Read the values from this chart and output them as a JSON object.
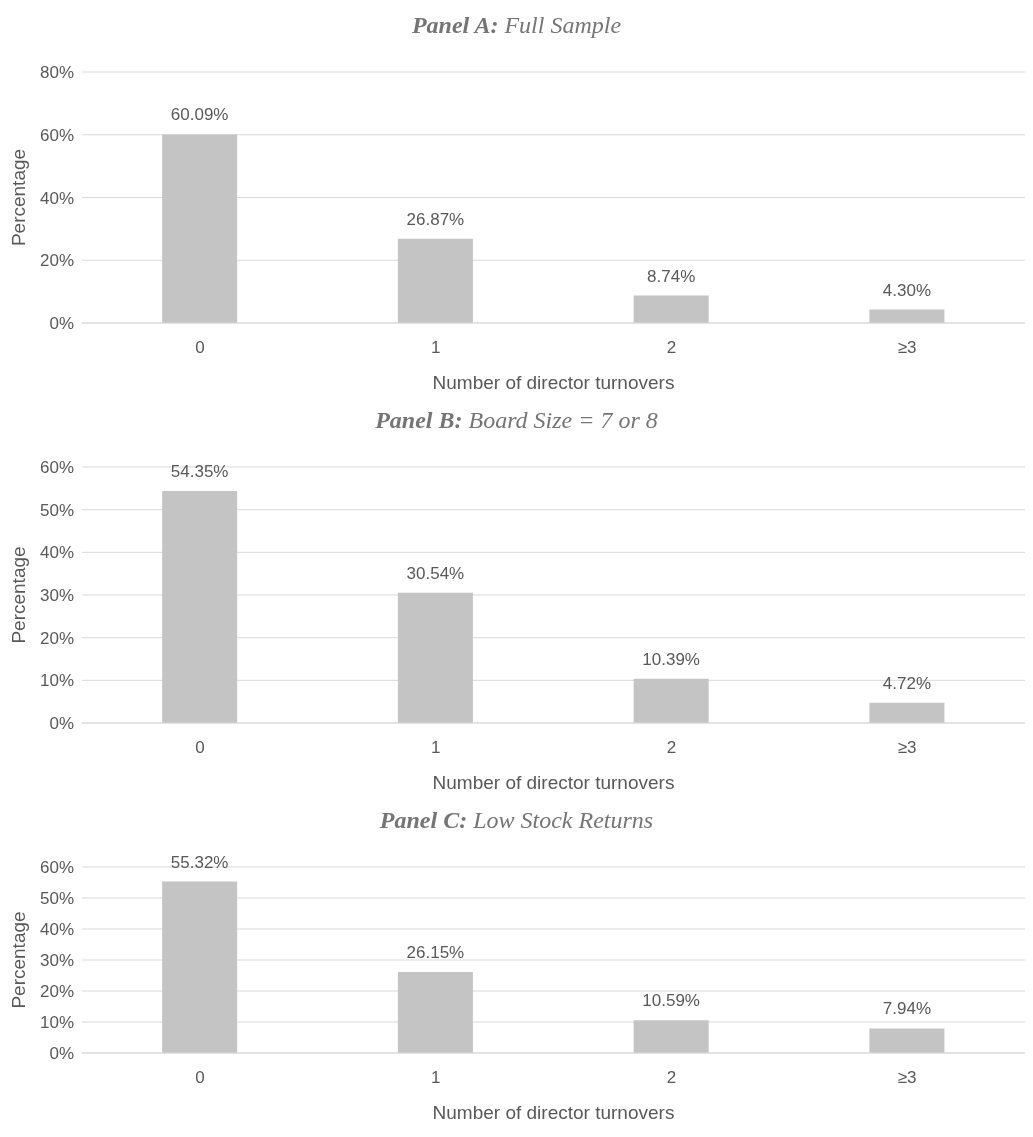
{
  "chart_data": [
    {
      "type": "bar",
      "title": "Panel A: Full Sample",
      "xlabel": "Number of director turnovers",
      "ylabel": "Percentage",
      "categories": [
        "0",
        "1",
        "2",
        "≥3"
      ],
      "values": [
        60.09,
        26.87,
        8.74,
        4.3
      ],
      "value_labels": [
        "60.09%",
        "26.87%",
        "8.74%",
        "4.30%"
      ],
      "color": "#c4c4c4",
      "ylim": [
        0,
        80
      ],
      "yticks": [
        {
          "value": 0,
          "label": "0%"
        },
        {
          "value": 20,
          "label": "20%"
        },
        {
          "value": 40,
          "label": "40%"
        },
        {
          "value": 60,
          "label": "60%"
        },
        {
          "value": 80,
          "label": "80%"
        }
      ],
      "grid": "y",
      "legend": false
    },
    {
      "type": "bar",
      "title": "Panel B: Board Size = 7 or 8",
      "xlabel": "Number of director turnovers",
      "ylabel": "Percentage",
      "categories": [
        "0",
        "1",
        "2",
        "≥3"
      ],
      "values": [
        54.35,
        30.54,
        10.39,
        4.72
      ],
      "value_labels": [
        "54.35%",
        "30.54%",
        "10.39%",
        "4.72%"
      ],
      "color": "#c4c4c4",
      "ylim": [
        0,
        60
      ],
      "yticks": [
        {
          "value": 0,
          "label": "0%"
        },
        {
          "value": 10,
          "label": "10%"
        },
        {
          "value": 20,
          "label": "20%"
        },
        {
          "value": 30,
          "label": "30%"
        },
        {
          "value": 40,
          "label": "40%"
        },
        {
          "value": 50,
          "label": "50%"
        },
        {
          "value": 60,
          "label": "60%"
        }
      ],
      "grid": "y",
      "legend": false
    },
    {
      "type": "bar",
      "title": "Panel C: Low Stock Returns",
      "xlabel": "Number of director turnovers",
      "ylabel": "Percentage",
      "categories": [
        "0",
        "1",
        "2",
        "≥3"
      ],
      "values": [
        55.32,
        26.15,
        10.59,
        7.94
      ],
      "value_labels": [
        "55.32%",
        "26.15%",
        "10.59%",
        "7.94%"
      ],
      "color": "#c4c4c4",
      "ylim": [
        0,
        60
      ],
      "yticks": [
        {
          "value": 0,
          "label": "0%"
        },
        {
          "value": 10,
          "label": "10%"
        },
        {
          "value": 20,
          "label": "20%"
        },
        {
          "value": 30,
          "label": "30%"
        },
        {
          "value": 40,
          "label": "40%"
        },
        {
          "value": 50,
          "label": "50%"
        },
        {
          "value": 60,
          "label": "60%"
        }
      ],
      "grid": "y",
      "legend": false
    }
  ]
}
